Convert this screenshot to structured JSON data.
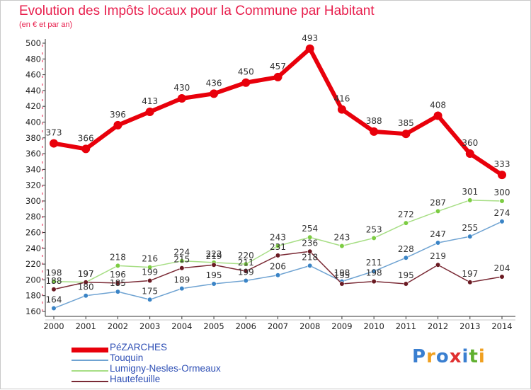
{
  "header": {
    "title": "Evolution des Impôts locaux pour la Commune par Habitant",
    "subtitle": "(en € et par an)"
  },
  "logo": {
    "text": "Proxiti",
    "letters": [
      {
        "ch": "P",
        "color": "#3a7fd0"
      },
      {
        "ch": "r",
        "color": "#f0a020"
      },
      {
        "ch": "o",
        "color": "#3a7fd0"
      },
      {
        "ch": "x",
        "color": "#e03030"
      },
      {
        "ch": "i",
        "color": "#3a7fd0"
      },
      {
        "ch": "t",
        "color": "#60b030"
      },
      {
        "ch": "i",
        "color": "#f0a020"
      }
    ]
  },
  "chart_data": {
    "type": "line",
    "title": "Evolution des Impôts locaux pour la Commune par Habitant",
    "subtitle": "(en € et par an)",
    "x": [
      "2000",
      "2001",
      "2002",
      "2003",
      "2004",
      "2005",
      "2006",
      "2007",
      "2008",
      "2009",
      "2010",
      "2011",
      "2012",
      "2013",
      "2014"
    ],
    "ylim": [
      160,
      500
    ],
    "yticks": [
      160,
      180,
      200,
      220,
      240,
      260,
      280,
      300,
      320,
      340,
      360,
      380,
      400,
      420,
      440,
      460,
      480,
      500
    ],
    "grid": false,
    "legend_position": "bottom-left",
    "series": [
      {
        "name": "PéZARCHES",
        "color": "#e8000b",
        "markerColor": "#e8000b",
        "width": 6,
        "values": [
          373,
          366,
          396,
          413,
          430,
          436,
          450,
          457,
          493,
          416,
          388,
          385,
          408,
          360,
          333
        ]
      },
      {
        "name": "Touquin",
        "color": "#6fa3d2",
        "markerColor": "#3a84c6",
        "width": 1.5,
        "values": [
          164,
          180,
          185,
          175,
          189,
          195,
          199,
          206,
          218,
          198,
          211,
          228,
          247,
          255,
          274
        ]
      },
      {
        "name": "Lumigny-Nesles-Ormeaux",
        "color": "#a7de85",
        "markerColor": "#7ccc42",
        "width": 1.5,
        "values": [
          198,
          197,
          218,
          216,
          224,
          222,
          220,
          243,
          254,
          243,
          253,
          272,
          287,
          301,
          300
        ]
      },
      {
        "name": "Hautefeuille",
        "color": "#7a2a35",
        "markerColor": "#6a1a22",
        "width": 1.5,
        "values": [
          188,
          197,
          196,
          199,
          215,
          219,
          211,
          231,
          236,
          195,
          198,
          195,
          219,
          197,
          204
        ]
      }
    ],
    "point_labels": [
      [
        "373",
        "366",
        "396",
        "413",
        "430",
        "436",
        "450",
        "457",
        "493",
        "416",
        "388",
        "385",
        "408",
        "360",
        "333"
      ],
      [
        "164",
        "180",
        "185",
        "175",
        "189",
        "195",
        "199",
        "206",
        "218",
        "198",
        "211",
        "228",
        "247",
        "255",
        "274"
      ],
      [
        "198",
        "197",
        "218",
        "216",
        "224",
        "222",
        "220",
        "243",
        "254",
        "243",
        "253",
        "272",
        "287",
        "301",
        "300"
      ],
      [
        "188",
        "197",
        "196",
        "199",
        "215",
        "219",
        "211",
        "231",
        "236",
        "195",
        "198",
        "195",
        "219",
        "197",
        "204"
      ]
    ]
  }
}
